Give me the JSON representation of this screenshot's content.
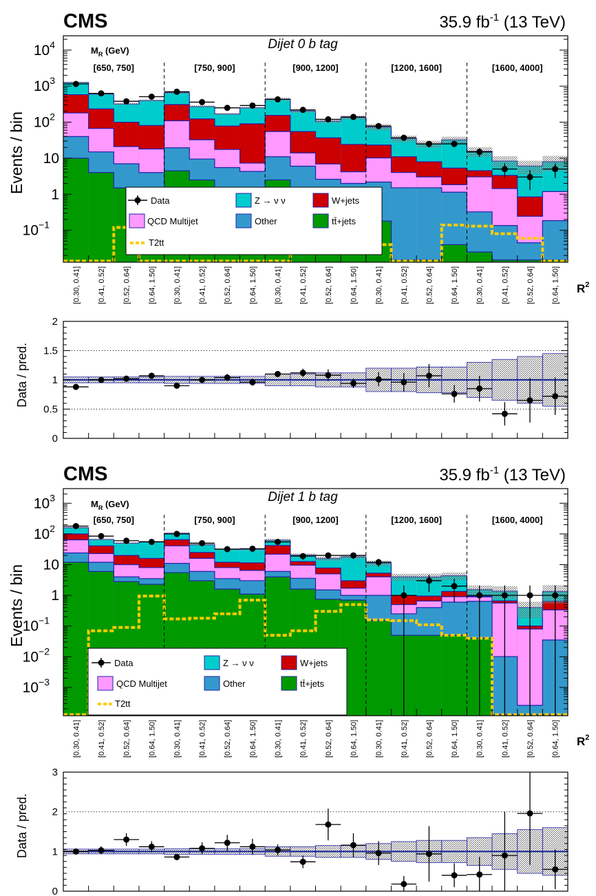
{
  "header": {
    "cms": "CMS",
    "lumi_value": "35.9 fb",
    "lumi_exp": "-1",
    "lumi_energy": " (13 TeV)"
  },
  "axis_labels": {
    "y_main": "Events / bin",
    "y_ratio": "Data / pred.",
    "x_main": "R",
    "x_sup": "2",
    "mr_label": "M",
    "mr_sub": "R",
    "mr_unit": " (GeV)"
  },
  "legend": {
    "data": "Data",
    "znn": "Z → ν ν",
    "wjets": "W+jets",
    "qcd": "QCD Multijet",
    "other": "Other",
    "ttbar": "tt̄+jets",
    "t2tt": "T2tt"
  },
  "colors": {
    "znn": "#00cccc",
    "wjets": "#cc0000",
    "qcd": "#ff99ff",
    "other": "#3399cc",
    "ttbar": "#009900",
    "t2tt": "#ffcc00",
    "outline": "#2222aa"
  },
  "chart_data": [
    {
      "type": "bar",
      "stacked": true,
      "title": "Dijet 0 b tag",
      "ylabel": "Events / bin",
      "xlabel": "R2",
      "yscale": "log",
      "ylim": [
        0.013,
        25000
      ],
      "yticks": [
        {
          "v": 0.1,
          "b": "10",
          "e": "−1"
        },
        {
          "v": 1,
          "b": "1",
          "e": ""
        },
        {
          "v": 10,
          "b": "10",
          "e": ""
        },
        {
          "v": 100,
          "b": "10",
          "e": "2"
        },
        {
          "v": 1000,
          "b": "10",
          "e": "3"
        },
        {
          "v": 10000,
          "b": "10",
          "e": "4"
        }
      ],
      "mr_bins": [
        "[650, 750]",
        "[750, 900]",
        "[900, 1200]",
        "[1200, 1600]",
        "[1600, 4000]"
      ],
      "r2_bins": [
        "[0.30, 0.41]",
        "[0.41, 0.52]",
        "[0.52, 0.64]",
        "[0.64, 1.50]"
      ],
      "series": [
        {
          "key": "ttbar",
          "name": "tt̄+jets",
          "values": [
            10,
            4,
            1.5,
            0.8,
            4.5,
            2.5,
            1.5,
            0.8,
            2.5,
            1,
            0.4,
            0.5,
            0.18,
            0.015,
            0.015,
            0.04,
            0.025,
            0.015,
            0.015,
            0.015
          ]
        },
        {
          "key": "other",
          "name": "Other",
          "values": [
            30,
            11,
            5.5,
            3.2,
            15,
            7,
            4,
            3.5,
            8.5,
            5,
            2.2,
            1.5,
            2,
            1.5,
            1.5,
            1.1,
            0.3,
            0.12,
            0.03,
            0.17
          ]
        },
        {
          "key": "qcd",
          "name": "QCD Multijet",
          "values": [
            140,
            52,
            14,
            14,
            90,
            23,
            12,
            3,
            44,
            8,
            4.3,
            2.2,
            8,
            2.5,
            1.5,
            0.7,
            2.7,
            1.3,
            0.2,
            1
          ]
        },
        {
          "key": "wjets",
          "name": "W+jets",
          "values": [
            400,
            167,
            79,
            63,
            200,
            91,
            61,
            83,
            100,
            41,
            30,
            20,
            13,
            7,
            5,
            3.5,
            1.5,
            1.9,
            0.6,
            0
          ]
        },
        {
          "key": "znn",
          "name": "Z → ν ν",
          "values": [
            680,
            370,
            220,
            320,
            350,
            150,
            90,
            160,
            280,
            150,
            70,
            110,
            50,
            24,
            17,
            27,
            11,
            5,
            5.2,
            6.8
          ]
        }
      ],
      "t2tt": [
        0.014,
        0.014,
        0.12,
        0.014,
        0.014,
        0.014,
        0.014,
        0.014,
        0.014,
        0.04,
        0.04,
        0.04,
        0.04,
        0.014,
        0.014,
        0.14,
        0.13,
        0.08,
        0.06,
        0.014
      ],
      "data": [
        1150,
        630,
        380,
        510,
        700,
        360,
        250,
        290,
        430,
        220,
        120,
        140,
        78,
        37,
        25,
        25,
        15,
        5,
        3,
        5
      ],
      "data_err": [
        34,
        25,
        20,
        23,
        26,
        19,
        16,
        17,
        21,
        15,
        11,
        12,
        9,
        6,
        5,
        5,
        4,
        2.2,
        1.7,
        2.2
      ],
      "band_rel": [
        0.05,
        0.05,
        0.05,
        0.05,
        0.06,
        0.06,
        0.06,
        0.06,
        0.1,
        0.1,
        0.12,
        0.12,
        0.2,
        0.2,
        0.22,
        0.22,
        0.3,
        0.35,
        0.4,
        0.45
      ]
    },
    {
      "type": "bar",
      "title": "",
      "ylabel": "Data / pred.",
      "ylim": [
        0,
        2
      ],
      "yticks": [
        {
          "v": 0,
          "b": "0",
          "e": ""
        },
        {
          "v": 0.5,
          "b": "0.5",
          "e": ""
        },
        {
          "v": 1,
          "b": "1",
          "e": ""
        },
        {
          "v": 1.5,
          "b": "1.5",
          "e": ""
        },
        {
          "v": 2,
          "b": "2",
          "e": ""
        }
      ],
      "ratio": [
        0.88,
        1.0,
        1.02,
        1.07,
        0.9,
        1.0,
        1.04,
        0.96,
        1.1,
        1.12,
        1.08,
        0.94,
        1.01,
        0.96,
        1.07,
        0.76,
        0.85,
        0.42,
        0.65,
        0.72
      ],
      "ratio_err": [
        0.03,
        0.04,
        0.04,
        0.04,
        0.04,
        0.05,
        0.06,
        0.06,
        0.05,
        0.07,
        0.1,
        0.08,
        0.12,
        0.16,
        0.2,
        0.15,
        0.22,
        0.2,
        0.38,
        0.32
      ],
      "band_rel": [
        0.05,
        0.05,
        0.05,
        0.05,
        0.06,
        0.06,
        0.06,
        0.06,
        0.1,
        0.1,
        0.12,
        0.12,
        0.2,
        0.2,
        0.22,
        0.22,
        0.3,
        0.35,
        0.4,
        0.45
      ]
    },
    {
      "type": "bar",
      "stacked": true,
      "title": "Dijet 1 b tag",
      "ylabel": "Events / bin",
      "xlabel": "R2",
      "yscale": "log",
      "ylim": [
        0.00012,
        3000
      ],
      "yticks": [
        {
          "v": 0.001,
          "b": "10",
          "e": "−3"
        },
        {
          "v": 0.01,
          "b": "10",
          "e": "−2"
        },
        {
          "v": 0.1,
          "b": "10",
          "e": "−1"
        },
        {
          "v": 1,
          "b": "1",
          "e": ""
        },
        {
          "v": 10,
          "b": "10",
          "e": ""
        },
        {
          "v": 100,
          "b": "10",
          "e": "2"
        },
        {
          "v": 1000,
          "b": "10",
          "e": "3"
        }
      ],
      "mr_bins": [
        "[650, 750]",
        "[750, 900]",
        "[900, 1200]",
        "[1200, 1600]",
        "[1600, 4000]"
      ],
      "r2_bins": [
        "[0.30, 0.41]",
        "[0.41, 0.52]",
        "[0.52, 0.64]",
        "[0.64, 1.50]"
      ],
      "series": [
        {
          "key": "ttbar",
          "name": "tt̄+jets",
          "values": [
            12,
            6,
            2.8,
            2.3,
            5.5,
            3,
            1.6,
            1.1,
            4,
            1.6,
            0.75,
            0.7,
            0.15,
            0.05,
            0.05,
            0.05,
            0.04,
            0.00013,
            0.00013,
            0.00013
          ]
        },
        {
          "key": "other",
          "name": "Other",
          "values": [
            12,
            6,
            1.2,
            1.2,
            5.5,
            3,
            1.9,
            1.9,
            2,
            2,
            0.75,
            0.3,
            0.85,
            0.2,
            0.35,
            0.55,
            0.6,
            0.01,
            0.00013,
            0.035
          ]
        },
        {
          "key": "qcd",
          "name": "QCD Multijet",
          "values": [
            40,
            11,
            6,
            4.5,
            30,
            10,
            4.5,
            3.5,
            16,
            6,
            3.5,
            0.7,
            3,
            0.25,
            0.25,
            0.3,
            0.25,
            0.55,
            0.08,
            0.3
          ]
        },
        {
          "key": "wjets",
          "name": "W+jets",
          "values": [
            36,
            18,
            10,
            8,
            24,
            9,
            4,
            5,
            20,
            3,
            2.8,
            1.3,
            1.3,
            0.5,
            0.3,
            0.45,
            0.05,
            0.1,
            0.02,
            0.3
          ]
        },
        {
          "key": "znn",
          "name": "Z → ν ν",
          "values": [
            60,
            25,
            30,
            40,
            40,
            20,
            20,
            20,
            20,
            8,
            8,
            15,
            6,
            3,
            3,
            3,
            0.6,
            0.7,
            0.3,
            0.7
          ]
        }
      ],
      "t2tt": [
        0.00013,
        0.07,
        0.09,
        0.95,
        0.17,
        0.18,
        0.25,
        0.7,
        0.05,
        0.07,
        0.3,
        0.5,
        0.16,
        0.15,
        0.11,
        0.05,
        0.04,
        0.00013,
        0.00013,
        0.00013
      ],
      "data": [
        180,
        85,
        60,
        55,
        100,
        50,
        32,
        33,
        55,
        19,
        20,
        20,
        12,
        1,
        3,
        2,
        1,
        1,
        1,
        1
      ],
      "data_err": [
        13,
        9,
        8,
        7,
        10,
        7,
        6,
        6,
        7,
        4.4,
        4.5,
        4.5,
        3.5,
        1.1,
        1.7,
        1.4,
        1.1,
        1.1,
        1.1,
        1.1
      ],
      "band_rel": [
        0.06,
        0.06,
        0.06,
        0.06,
        0.07,
        0.07,
        0.07,
        0.07,
        0.12,
        0.12,
        0.15,
        0.15,
        0.2,
        0.25,
        0.28,
        0.28,
        0.35,
        0.45,
        0.55,
        0.6
      ]
    },
    {
      "type": "bar",
      "title": "",
      "ylabel": "Data / pred.",
      "ylim": [
        0,
        3
      ],
      "yticks": [
        {
          "v": 0,
          "b": "0",
          "e": ""
        },
        {
          "v": 1,
          "b": "1",
          "e": ""
        },
        {
          "v": 2,
          "b": "2",
          "e": ""
        },
        {
          "v": 3,
          "b": "3",
          "e": ""
        }
      ],
      "ratio": [
        1.0,
        1.03,
        1.3,
        1.12,
        0.86,
        1.08,
        1.22,
        1.12,
        1.04,
        0.74,
        1.68,
        1.16,
        0.96,
        0.18,
        0.94,
        0.4,
        0.42,
        0.9,
        1.96,
        0.55
      ],
      "ratio_err": [
        0.07,
        0.1,
        0.16,
        0.14,
        0.08,
        0.15,
        0.2,
        0.2,
        0.14,
        0.16,
        0.4,
        0.3,
        0.3,
        0.2,
        0.7,
        0.3,
        0.45,
        1.1,
        1.3,
        0.5
      ],
      "band_rel": [
        0.06,
        0.06,
        0.06,
        0.06,
        0.07,
        0.07,
        0.07,
        0.07,
        0.12,
        0.12,
        0.15,
        0.15,
        0.2,
        0.25,
        0.28,
        0.28,
        0.35,
        0.45,
        0.55,
        0.6
      ]
    }
  ]
}
